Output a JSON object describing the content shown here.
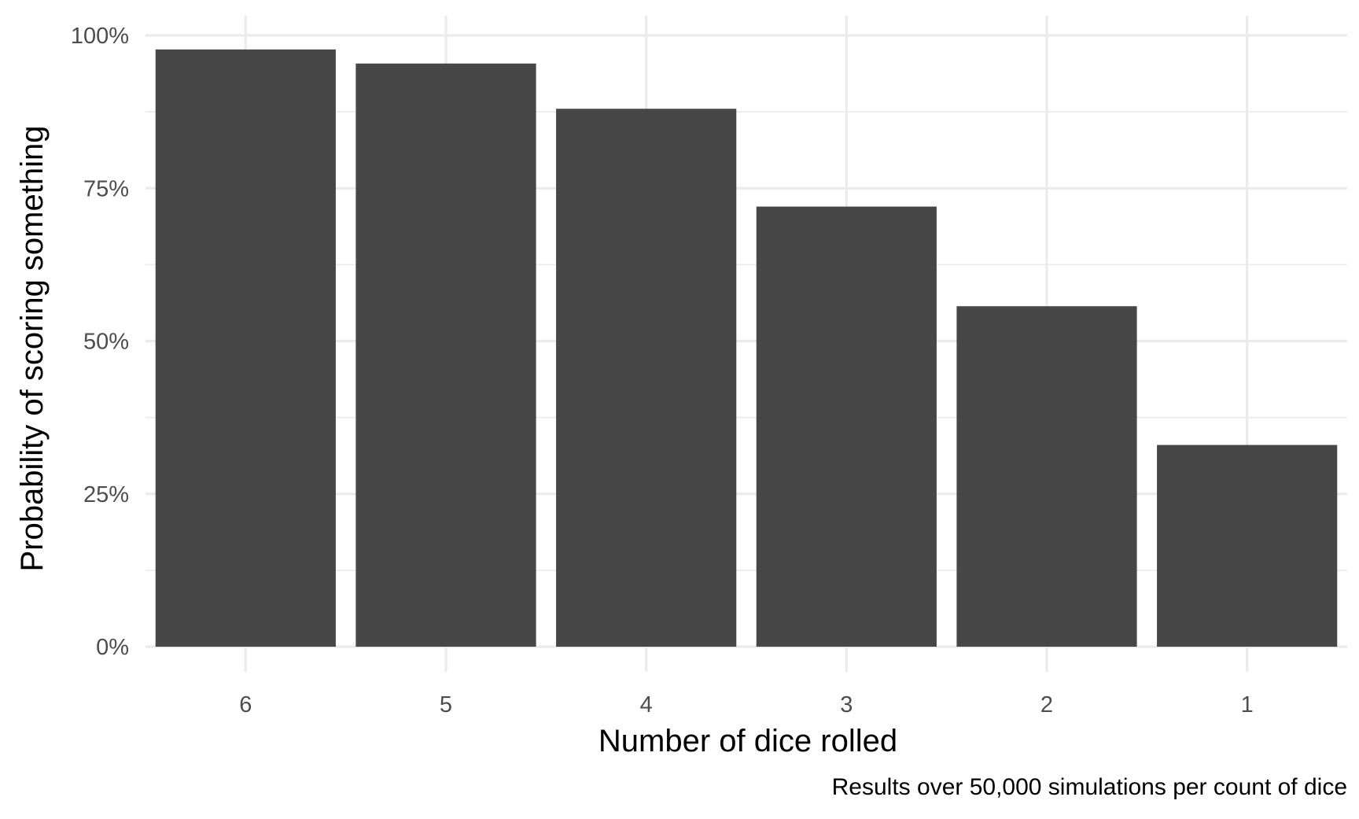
{
  "chart_data": {
    "type": "bar",
    "categories": [
      "6",
      "5",
      "4",
      "3",
      "2",
      "1"
    ],
    "values": [
      0.977,
      0.954,
      0.88,
      0.72,
      0.557,
      0.33
    ],
    "xlabel": "Number of dice rolled",
    "ylabel": "Probability of scoring something",
    "caption": "Results over 50,000 simulations per count of dice",
    "ylim": [
      0,
      1
    ],
    "y_ticks": [
      0,
      0.25,
      0.5,
      0.75,
      1.0
    ],
    "y_tick_labels": [
      "0%",
      "25%",
      "50%",
      "75%",
      "100%"
    ],
    "grid": true,
    "legend": "none",
    "colors": {
      "bar": "#474747",
      "grid": "#ebebeb",
      "tick_text": "#4d4d4d",
      "background": "#ffffff"
    }
  }
}
